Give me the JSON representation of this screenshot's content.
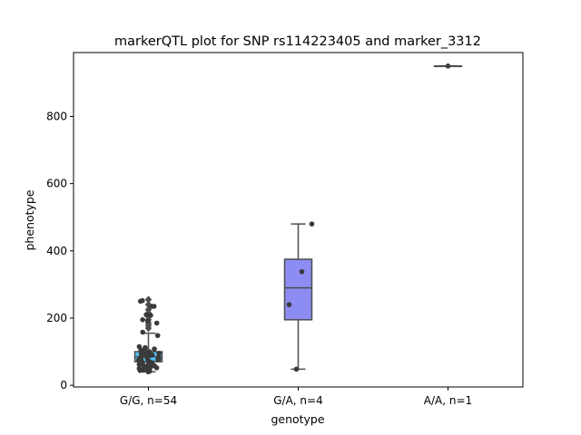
{
  "chart_data": {
    "type": "box",
    "title": "markerQTL plot for SNP rs114223405 and marker_3312",
    "xlabel": "genotype",
    "ylabel": "phenotype",
    "ylim": [
      -5,
      990
    ],
    "yticks": [
      0,
      200,
      400,
      600,
      800
    ],
    "grid": false,
    "categories": [
      "G/G, n=54",
      "G/A, n=4",
      "A/A, n=1"
    ],
    "boxes": [
      {
        "category": "G/G, n=54",
        "color": "#4fc3f7",
        "q1": 70,
        "median": 85,
        "q3": 100,
        "whisker_low": 40,
        "whisker_high": 155,
        "outliers": [
          170,
          178,
          185,
          195,
          205,
          215,
          225,
          240,
          255
        ]
      },
      {
        "category": "G/A, n=4",
        "color": "#8c8cf2",
        "q1": 195,
        "median": 290,
        "q3": 375,
        "whisker_low": 48,
        "whisker_high": 480,
        "outliers": []
      },
      {
        "category": "A/A, n=1",
        "color": "#f48fb1",
        "q1": 950,
        "median": 950,
        "q3": 950,
        "whisker_low": 950,
        "whisker_high": 950,
        "outliers": []
      }
    ],
    "points": [
      {
        "category": 0,
        "values": [
          40,
          42,
          44,
          45,
          47,
          48,
          50,
          52,
          53,
          55,
          57,
          58,
          60,
          62,
          63,
          65,
          67,
          68,
          70,
          72,
          73,
          75,
          77,
          78,
          80,
          82,
          83,
          85,
          87,
          88,
          90,
          92,
          93,
          95,
          97,
          98,
          100,
          102,
          105,
          108,
          110,
          112,
          115,
          148,
          158,
          185,
          192,
          195,
          208,
          210,
          235,
          235,
          250,
          252
        ]
      },
      {
        "category": 1,
        "values": [
          48,
          240,
          338,
          480
        ]
      },
      {
        "category": 2,
        "values": [
          950
        ]
      }
    ]
  }
}
